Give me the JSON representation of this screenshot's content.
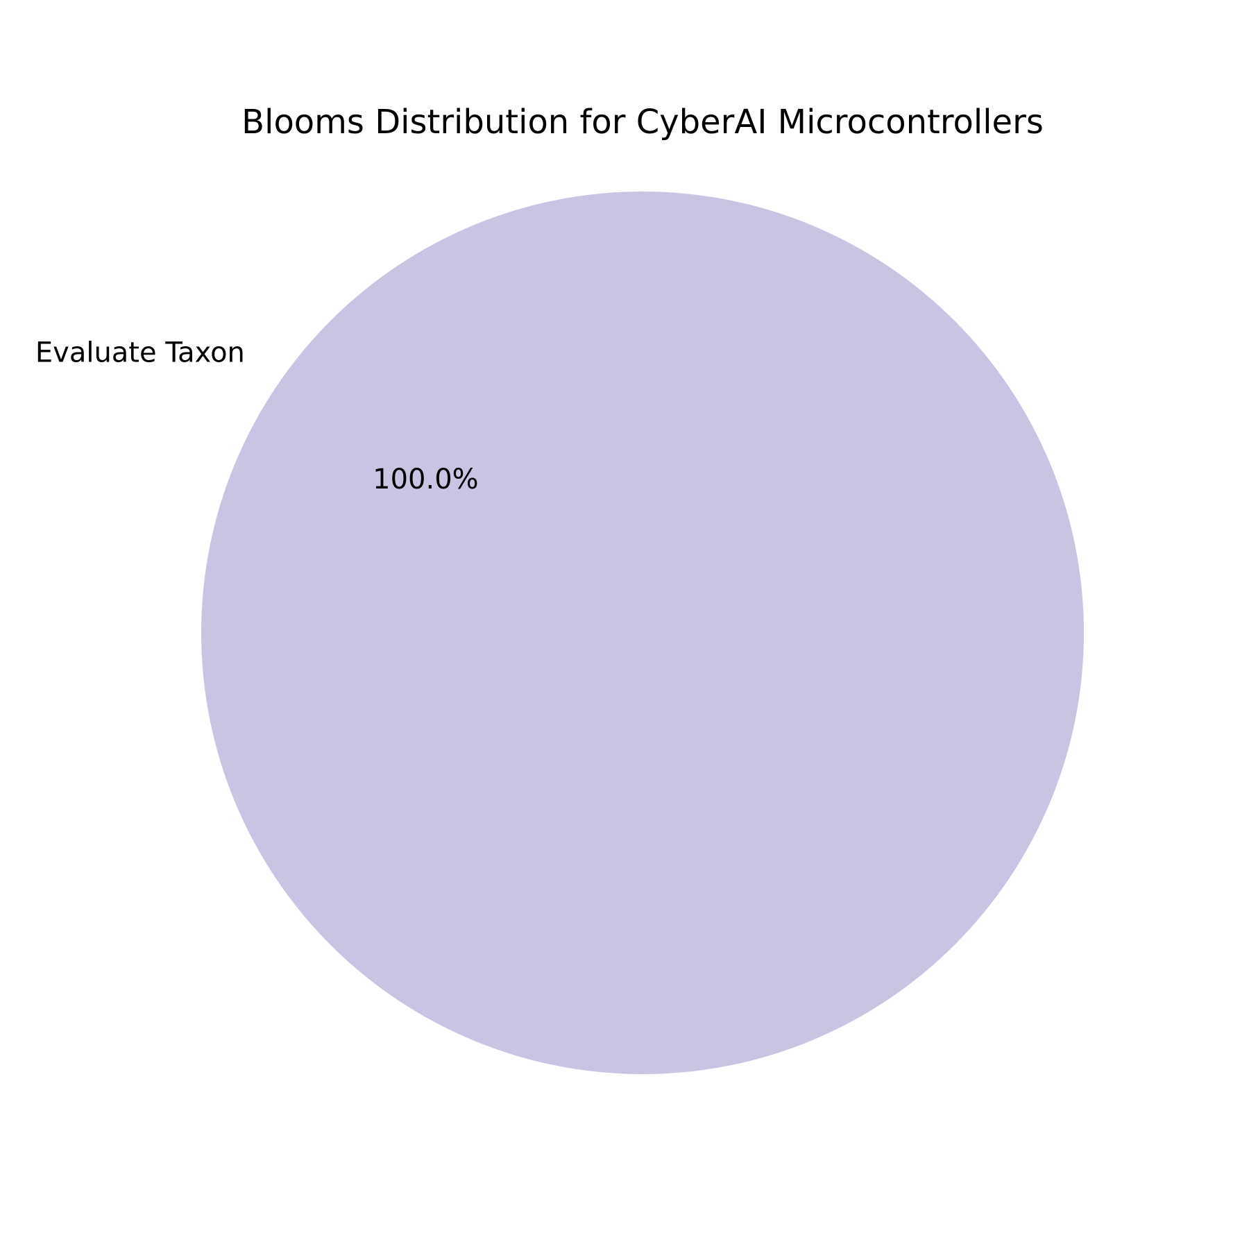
{
  "chart_data": {
    "type": "pie",
    "title": "Blooms Distribution for CyberAI Microcontrollers",
    "slices": [
      {
        "label": "Evaluate Taxon",
        "value": 100.0,
        "percent_label": "100.0%",
        "color": "#cac4e3"
      }
    ]
  }
}
